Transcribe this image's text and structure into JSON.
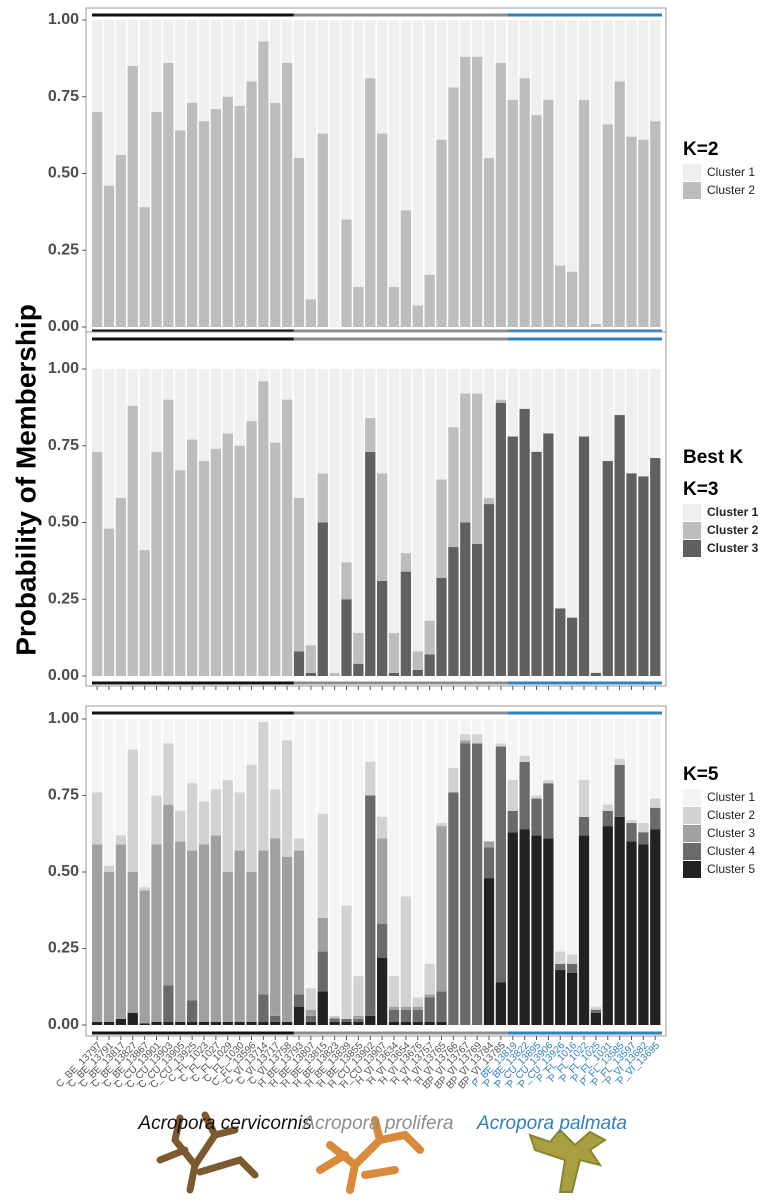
{
  "y_label": "Probability of Membership",
  "groups": [
    {
      "name": "Acropora cervicornis",
      "color": "#111111",
      "samples": [
        "C_BE_13797",
        "C_BE_13791",
        "C_BE_13817",
        "C_BE_13827",
        "C_BE_13867",
        "C_CU_13901",
        "C_CU_13903",
        "C_CU_13905",
        "C_CU_13925",
        "C_FL_1023",
        "C_FL_1027",
        "C_FL_1029",
        "C_FL_1030",
        "C_FL_13596",
        "C_VI_13714",
        "C_VI_13717",
        "C_VI_13758"
      ]
    },
    {
      "name": "Acropora prolifera",
      "color": "#8c8c8c",
      "samples": [
        "H_BE_13793",
        "H_BE_13807",
        "H_BE_13815",
        "H_BE_13823",
        "H_BE_13839",
        "H_BE_13855",
        "H_CU_13902",
        "H_CU_13907",
        "H_VI_13634",
        "H_VI_13654",
        "H_VI_13676",
        "H_VI_13757",
        "H_VI_13765",
        "H_VI_13766",
        "BP_VI_13767",
        "BP_VI_13769",
        "BP_VI_13784",
        "BP_VI_13785"
      ]
    },
    {
      "name": "Acropora palmata",
      "color": "#2f7fc1",
      "samples": [
        "P_BE_13819",
        "P_BE_13822",
        "P_CU_13895",
        "P_CU_13906",
        "P_CU_13926",
        "P_FL_1016",
        "P_FL_1022",
        "P_FL_1025",
        "P_FL_1031",
        "P_FL_13585",
        "P_FL_13597",
        "P_VI_13682",
        "P_VI_13695"
      ]
    }
  ],
  "chart_data": [
    {
      "type": "bar",
      "stacked": true,
      "title": "K=2",
      "ylim": [
        0,
        1
      ],
      "yticks": [
        {
          "value": 0,
          "label": "0.00"
        },
        {
          "value": 0.25,
          "label": "0.25"
        },
        {
          "value": 0.5,
          "label": "0.50"
        },
        {
          "value": 0.75,
          "label": "0.75"
        },
        {
          "value": 1,
          "label": "1.00"
        }
      ],
      "series": [
        {
          "name": "Cluster 1",
          "color": "#efefef"
        },
        {
          "name": "Cluster 2",
          "color": "#bdbdbd",
          "values": [
            0.7,
            0.46,
            0.56,
            0.85,
            0.39,
            0.7,
            0.86,
            0.64,
            0.73,
            0.67,
            0.71,
            0.75,
            0.72,
            0.8,
            0.93,
            0.73,
            0.86,
            0.55,
            0.09,
            0.63,
            0.0,
            0.35,
            0.13,
            0.81,
            0.63,
            0.13,
            0.38,
            0.07,
            0.17,
            0.61,
            0.78,
            0.88,
            0.88,
            0.55,
            0.86,
            0.74,
            0.81,
            0.69,
            0.74,
            0.2,
            0.18,
            0.74,
            0.01,
            0.66,
            0.8,
            0.62,
            0.61,
            0.67
          ]
        }
      ]
    },
    {
      "type": "bar",
      "stacked": true,
      "title": "K=3",
      "annotation": "Best K",
      "ylim": [
        0,
        1
      ],
      "yticks": [
        {
          "value": 0,
          "label": "0.00"
        },
        {
          "value": 0.25,
          "label": "0.25"
        },
        {
          "value": 0.5,
          "label": "0.50"
        },
        {
          "value": 0.75,
          "label": "0.75"
        },
        {
          "value": 1,
          "label": "1.00"
        }
      ],
      "series": [
        {
          "name": "Cluster 1",
          "color": "#efefef"
        },
        {
          "name": "Cluster 2",
          "color": "#bdbdbd",
          "values": [
            0.73,
            0.48,
            0.58,
            0.88,
            0.41,
            0.73,
            0.9,
            0.67,
            0.77,
            0.7,
            0.74,
            0.79,
            0.75,
            0.83,
            0.96,
            0.76,
            0.9,
            0.5,
            0.09,
            0.16,
            0.01,
            0.12,
            0.1,
            0.11,
            0.35,
            0.13,
            0.06,
            0.06,
            0.11,
            0.32,
            0.39,
            0.42,
            0.49,
            0.02,
            0.01,
            0,
            0,
            0,
            0,
            0,
            0,
            0,
            0,
            0,
            0,
            0,
            0,
            0
          ]
        },
        {
          "name": "Cluster 3",
          "color": "#606060",
          "values": [
            0,
            0,
            0,
            0,
            0,
            0,
            0,
            0,
            0,
            0,
            0,
            0,
            0,
            0,
            0,
            0,
            0,
            0.08,
            0.01,
            0.5,
            0,
            0.25,
            0.04,
            0.73,
            0.31,
            0.01,
            0.34,
            0.02,
            0.07,
            0.32,
            0.42,
            0.5,
            0.43,
            0.56,
            0.89,
            0.78,
            0.87,
            0.73,
            0.79,
            0.22,
            0.19,
            0.78,
            0.01,
            0.7,
            0.85,
            0.66,
            0.65,
            0.71
          ]
        }
      ]
    },
    {
      "type": "bar",
      "stacked": true,
      "title": "K=5",
      "ylim": [
        0,
        1
      ],
      "yticks": [
        {
          "value": 0,
          "label": "0.00"
        },
        {
          "value": 0.25,
          "label": "0.25"
        },
        {
          "value": 0.5,
          "label": "0.50"
        },
        {
          "value": 0.75,
          "label": "0.75"
        },
        {
          "value": 1,
          "label": "1.00"
        }
      ],
      "series": [
        {
          "name": "Cluster 1",
          "color": "#f4f4f4"
        },
        {
          "name": "Cluster 2",
          "color": "#d2d2d2",
          "values": [
            0.17,
            0.02,
            0.03,
            0.4,
            0.01,
            0.16,
            0.2,
            0.1,
            0.22,
            0.14,
            0.15,
            0.3,
            0.19,
            0.35,
            0.42,
            0.16,
            0.38,
            0.04,
            0.07,
            0.34,
            0.005,
            0.37,
            0.13,
            0.11,
            0.07,
            0.1,
            0.36,
            0.03,
            0.1,
            0.01,
            0.08,
            0.02,
            0.03,
            0,
            0.01,
            0.1,
            0.02,
            0.01,
            0.01,
            0.04,
            0.03,
            0.12,
            0.01,
            0.02,
            0.02,
            0.01,
            0.03,
            0.03
          ]
        },
        {
          "name": "Cluster 3",
          "color": "#a0a0a0",
          "values": [
            0.58,
            0.49,
            0.57,
            0.46,
            0.435,
            0.58,
            0.59,
            0.59,
            0.49,
            0.58,
            0.61,
            0.49,
            0.56,
            0.49,
            0.47,
            0.58,
            0.54,
            0.47,
            0.02,
            0.11,
            0.005,
            0,
            0.01,
            0,
            0.28,
            0.01,
            0.01,
            0.01,
            0.01,
            0.54,
            0,
            0.01,
            0,
            0.02,
            0,
            0,
            0,
            0,
            0,
            0,
            0,
            0,
            0,
            0,
            0,
            0,
            0,
            0
          ]
        },
        {
          "name": "Cluster 4",
          "color": "#6a6a6a",
          "values": [
            0,
            0,
            0,
            0,
            0,
            0,
            0.12,
            0,
            0.07,
            0,
            0,
            0,
            0,
            0,
            0.09,
            0.02,
            0,
            0.04,
            0.02,
            0.13,
            0.01,
            0.01,
            0.01,
            0.72,
            0.11,
            0.04,
            0.04,
            0.04,
            0.08,
            0.1,
            0.76,
            0.92,
            0.92,
            0.1,
            0.77,
            0.07,
            0.22,
            0.12,
            0.18,
            0.02,
            0.03,
            0.06,
            0.01,
            0.05,
            0.17,
            0.06,
            0.04,
            0.07
          ]
        },
        {
          "name": "Cluster 5",
          "color": "#222222",
          "values": [
            0.01,
            0.01,
            0.02,
            0.04,
            0.005,
            0.01,
            0.01,
            0.01,
            0.01,
            0.01,
            0.01,
            0.01,
            0.01,
            0.01,
            0.01,
            0.01,
            0.01,
            0.06,
            0.01,
            0.11,
            0.01,
            0.01,
            0.01,
            0.03,
            0.22,
            0.01,
            0.01,
            0.01,
            0.01,
            0.01,
            0,
            0,
            0,
            0.48,
            0.14,
            0.63,
            0.64,
            0.62,
            0.61,
            0.18,
            0.17,
            0.62,
            0.04,
            0.65,
            0.68,
            0.6,
            0.59,
            0.64
          ]
        }
      ]
    }
  ]
}
